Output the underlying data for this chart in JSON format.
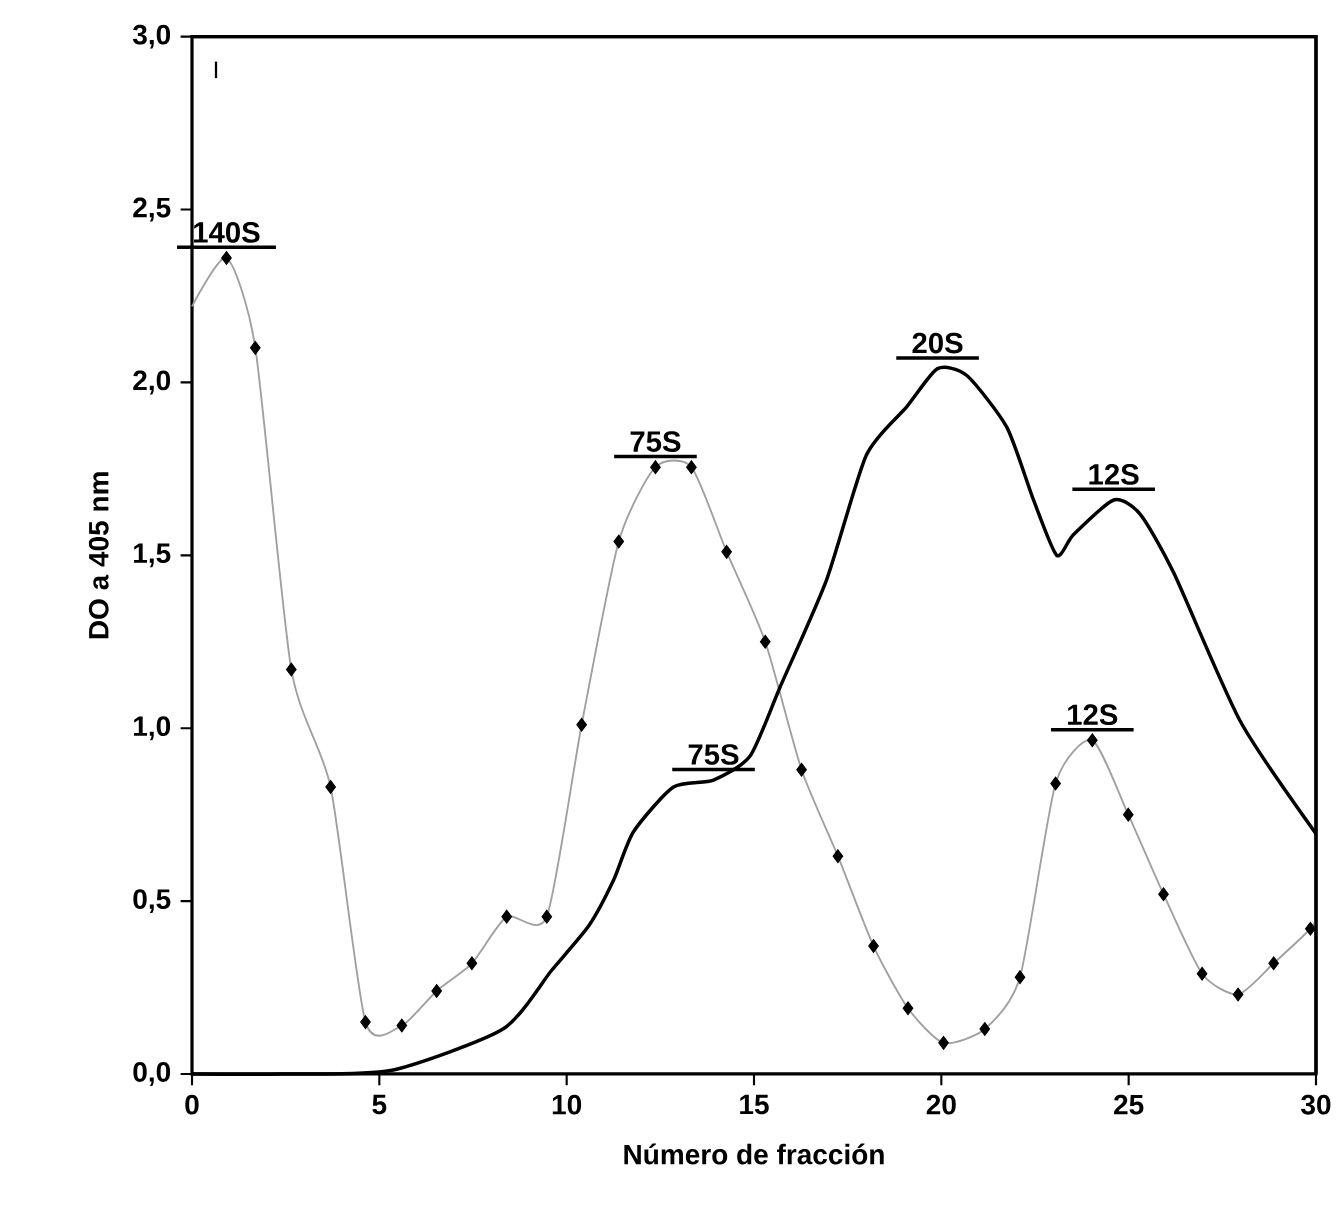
{
  "chart_data": {
    "type": "line",
    "xlabel": "Número de fracción",
    "ylabel": "DO a 405 nm",
    "xlim": [
      0,
      30
    ],
    "ylim": [
      0,
      3
    ],
    "xticks": [
      0,
      5,
      10,
      15,
      20,
      25,
      30
    ],
    "yticks": [
      {
        "value": 0,
        "label": "0,0"
      },
      {
        "value": 0.5,
        "label": "0,5"
      },
      {
        "value": 1,
        "label": "1,0"
      },
      {
        "value": 1.5,
        "label": "1,5"
      },
      {
        "value": 2,
        "label": "2,0"
      },
      {
        "value": 2.5,
        "label": "2,5"
      },
      {
        "value": 3,
        "label": "3,0"
      }
    ],
    "grid": false,
    "series": [
      {
        "type": "line",
        "color": "#a0a0a0",
        "marker": "none",
        "x": [
          0,
          0.92,
          1.69,
          2.65,
          3.7,
          4.63,
          5.6,
          6.53,
          7.47,
          8.4,
          9.47,
          10.4,
          11.39,
          12.37,
          13.33,
          14.27,
          15.3,
          16.27,
          17.24,
          18.19,
          19.11,
          20.06,
          21.16,
          22.1,
          23.05,
          24.03,
          24.99,
          25.93,
          26.96,
          27.92,
          28.87,
          29.85,
          30
        ],
        "values": [
          2.22,
          2.36,
          2.1,
          1.17,
          0.83,
          0.15,
          0.14,
          0.24,
          0.32,
          0.455,
          0.455,
          1.01,
          1.54,
          1.755,
          1.755,
          1.51,
          1.25,
          0.88,
          0.63,
          0.37,
          0.19,
          0.09,
          0.13,
          0.28,
          0.84,
          0.965,
          0.75,
          0.52,
          0.29,
          0.23,
          0.32,
          0.42,
          0.45
        ]
      },
      {
        "type": "scatter",
        "color": "#000000",
        "marker": "diamond",
        "x": [
          0.92,
          1.69,
          2.65,
          3.7,
          4.63,
          5.6,
          6.53,
          7.47,
          8.4,
          9.47,
          10.4,
          11.39,
          12.37,
          13.33,
          14.27,
          15.3,
          16.27,
          17.24,
          18.19,
          19.11,
          20.06,
          21.16,
          22.1,
          23.05,
          24.03,
          24.99,
          25.93,
          26.96,
          27.92,
          28.87,
          29.85
        ],
        "values": [
          2.36,
          2.1,
          1.17,
          0.83,
          0.15,
          0.14,
          0.24,
          0.32,
          0.455,
          0.455,
          1.01,
          1.54,
          1.755,
          1.755,
          1.51,
          1.25,
          0.88,
          0.63,
          0.37,
          0.19,
          0.09,
          0.13,
          0.28,
          0.84,
          0.965,
          0.75,
          0.52,
          0.29,
          0.23,
          0.32,
          0.42
        ]
      },
      {
        "color": "#000000",
        "marker": "none",
        "x": [
          0,
          2.4,
          5.3,
          8.3,
          9.6,
          10.6,
          11.25,
          11.78,
          12.85,
          13.92,
          14.9,
          15.7,
          16.94,
          18.0,
          19.08,
          19.9,
          20.68,
          21.75,
          22.46,
          23.08,
          23.53,
          24.6,
          25.3,
          26.2,
          27.98,
          30
        ],
        "values": [
          0,
          0,
          0.01,
          0.13,
          0.3,
          0.43,
          0.56,
          0.7,
          0.83,
          0.85,
          0.92,
          1.12,
          1.43,
          1.79,
          1.93,
          2.04,
          2.02,
          1.87,
          1.66,
          1.5,
          1.56,
          1.66,
          1.62,
          1.45,
          1.02,
          0.695
        ]
      }
    ],
    "annotations": [
      "I",
      {
        "text": "140S",
        "x": 0.92,
        "y": 2.36
      },
      {
        "text": "75S",
        "x": 12.37,
        "y": 1.755
      },
      {
        "text": "75S",
        "x": 13.92,
        "y": 0.85
      },
      {
        "text": "20S",
        "x": 19.9,
        "y": 2.04
      },
      {
        "text": "12S",
        "x": 24.6,
        "y": 1.66
      },
      {
        "text": "12S",
        "x": 24.03,
        "y": 0.965
      }
    ]
  }
}
